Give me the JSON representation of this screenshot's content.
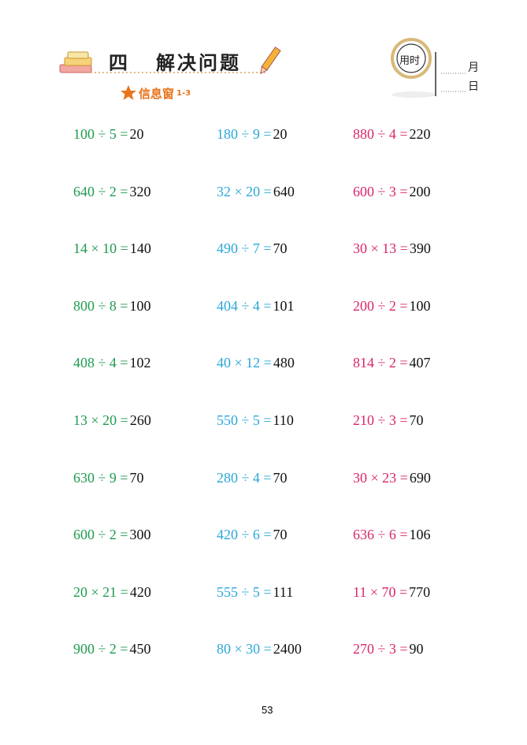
{
  "header": {
    "chapter": "四",
    "title": "解决问题",
    "section": "信息窗",
    "section_range": "1-3",
    "time_label": "用时",
    "month": "月",
    "day": "日"
  },
  "columns": [
    {
      "color": "#1f9b4f",
      "problems": [
        {
          "expression": "100 ÷ 5 =",
          "answer": "20"
        },
        {
          "expression": "640 ÷ 2 =",
          "answer": "320"
        },
        {
          "expression": "14 × 10 =",
          "answer": "140"
        },
        {
          "expression": "800 ÷ 8 =",
          "answer": "100"
        },
        {
          "expression": "408 ÷ 4 =",
          "answer": "102"
        },
        {
          "expression": "13 × 20 =",
          "answer": "260"
        },
        {
          "expression": "630 ÷ 9 =",
          "answer": "70"
        },
        {
          "expression": "600 ÷ 2 =",
          "answer": "300"
        },
        {
          "expression": "20 × 21 =",
          "answer": "420"
        },
        {
          "expression": "900 ÷ 2 =",
          "answer": "450"
        }
      ]
    },
    {
      "color": "#2aa7d9",
      "problems": [
        {
          "expression": "180 ÷ 9 =",
          "answer": "20"
        },
        {
          "expression": "32 × 20 =",
          "answer": "640"
        },
        {
          "expression": "490 ÷ 7 =",
          "answer": "70"
        },
        {
          "expression": "404 ÷ 4 =",
          "answer": "101"
        },
        {
          "expression": "40 × 12 =",
          "answer": "480"
        },
        {
          "expression": "550 ÷ 5 =",
          "answer": "110"
        },
        {
          "expression": "280 ÷ 4 =",
          "answer": "70"
        },
        {
          "expression": "420 ÷ 6 =",
          "answer": "70"
        },
        {
          "expression": "555 ÷ 5 =",
          "answer": "111"
        },
        {
          "expression": "80 × 30 =",
          "answer": "2400"
        }
      ]
    },
    {
      "color": "#d8266c",
      "problems": [
        {
          "expression": "880 ÷ 4 =",
          "answer": "220"
        },
        {
          "expression": "600 ÷ 3 =",
          "answer": "200"
        },
        {
          "expression": "30 × 13 =",
          "answer": "390"
        },
        {
          "expression": "200 ÷ 2 =",
          "answer": "100"
        },
        {
          "expression": "814 ÷ 2 =",
          "answer": "407"
        },
        {
          "expression": "210 ÷ 3 =",
          "answer": "70"
        },
        {
          "expression": "30 × 23 =",
          "answer": "690"
        },
        {
          "expression": "636 ÷ 6 =",
          "answer": "106"
        },
        {
          "expression": "11 × 70 =",
          "answer": "770"
        },
        {
          "expression": "270 ÷ 3 =",
          "answer": "90"
        }
      ]
    }
  ],
  "page_number": "53"
}
